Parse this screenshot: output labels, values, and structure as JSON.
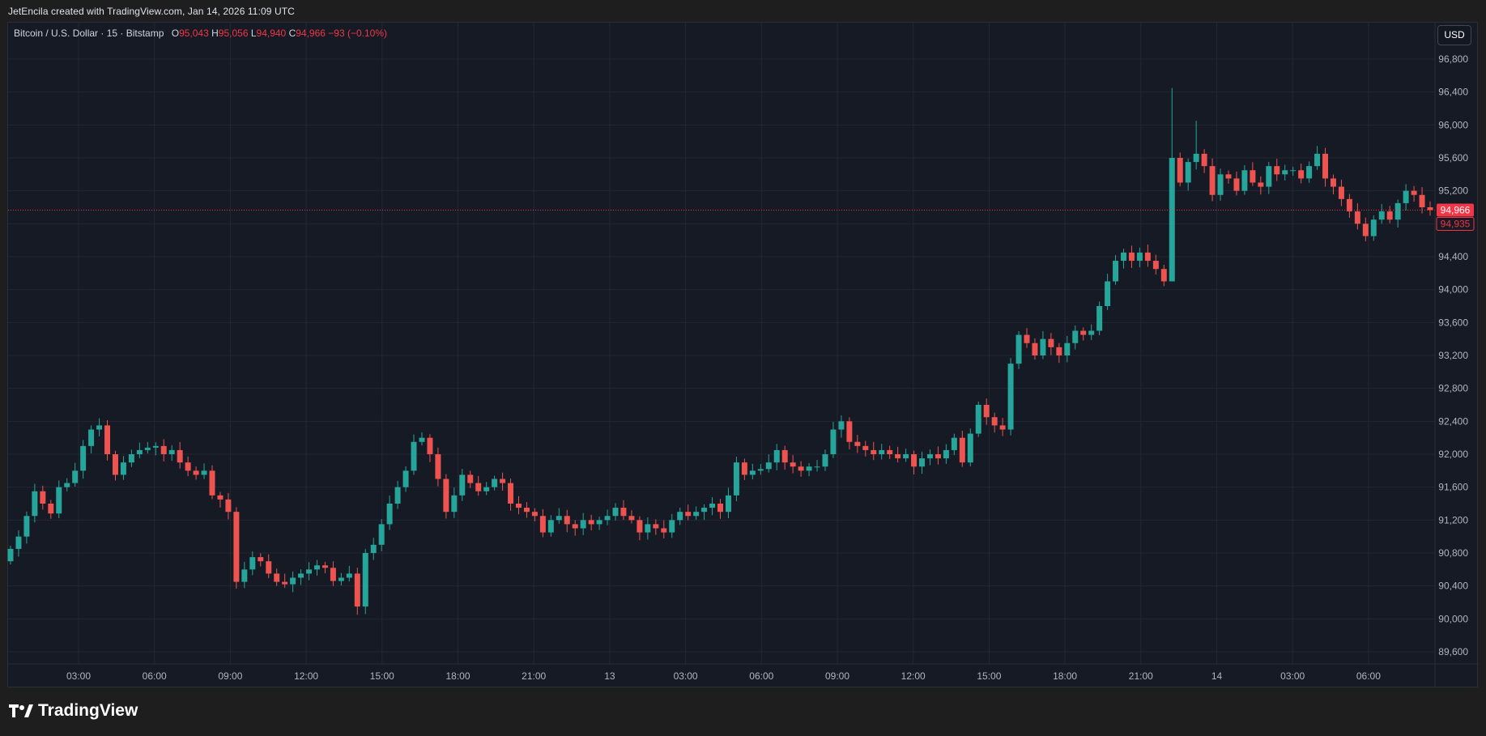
{
  "header": {
    "attribution": "JetEncila created with TradingView.com, Jan 14, 2026 11:09 UTC"
  },
  "legend": {
    "symbol": "Bitcoin / U.S. Dollar · 15 · Bitstamp",
    "open_label": "O",
    "open": "95,043",
    "high_label": "H",
    "high": "95,056",
    "low_label": "L",
    "low": "94,940",
    "close_label": "C",
    "close": "94,966",
    "change": "−93 (−0.10%)"
  },
  "currency_button": "USD",
  "footer": {
    "brand": "TradingView"
  },
  "colors": {
    "background": "#161a25",
    "grid": "#232734",
    "up": "#26a69a",
    "down": "#ef5350",
    "last_price": "#f23645",
    "axis_text": "#b2b5be"
  },
  "chart_data": {
    "type": "candlestick",
    "interval": "15",
    "currency": "USD",
    "ylim": [
      89400,
      97000
    ],
    "y_ticks": [
      89600,
      90000,
      90400,
      90800,
      91200,
      91600,
      92000,
      92400,
      92800,
      93200,
      93600,
      94000,
      94400,
      94800,
      95200,
      95600,
      96000,
      96400,
      96800
    ],
    "y_tick_labels": [
      "89,600",
      "90,000",
      "90,400",
      "90,800",
      "91,200",
      "91,600",
      "92,000",
      "92,400",
      "92,800",
      "93,200",
      "93,600",
      "94,000",
      "94,400",
      "94,800",
      "95,200",
      "95,600",
      "96,000",
      "96,400",
      "96,800"
    ],
    "x_tick_labels": [
      "03:00",
      "06:00",
      "09:00",
      "12:00",
      "15:00",
      "18:00",
      "21:00",
      "13",
      "03:00",
      "06:00",
      "09:00",
      "12:00",
      "15:00",
      "18:00",
      "21:00",
      "14",
      "03:00",
      "06:00"
    ],
    "last_price": 94966,
    "last_price_label": "94,966",
    "secondary_price": 94935,
    "secondary_price_label": "94,935",
    "grid": true,
    "closes": [
      90850,
      91000,
      91250,
      91550,
      91400,
      91280,
      91600,
      91650,
      91800,
      92100,
      92300,
      92350,
      92000,
      91750,
      91900,
      92000,
      92050,
      92080,
      92100,
      92000,
      92050,
      91900,
      91800,
      91750,
      91800,
      91500,
      91450,
      91300,
      90450,
      90600,
      90750,
      90700,
      90550,
      90450,
      90420,
      90500,
      90550,
      90600,
      90650,
      90620,
      90460,
      90500,
      90550,
      90150,
      90800,
      90900,
      91150,
      91400,
      91600,
      91800,
      92150,
      92200,
      92000,
      91700,
      91300,
      91500,
      91750,
      91650,
      91550,
      91600,
      91700,
      91650,
      91400,
      91350,
      91300,
      91250,
      91050,
      91200,
      91250,
      91150,
      91100,
      91200,
      91150,
      91200,
      91250,
      91350,
      91250,
      91200,
      91050,
      91150,
      91100,
      91050,
      91200,
      91300,
      91250,
      91300,
      91350,
      91400,
      91300,
      91500,
      91900,
      91750,
      91800,
      91820,
      91900,
      92050,
      91900,
      91850,
      91800,
      91850,
      91850,
      92000,
      92300,
      92400,
      92150,
      92100,
      92050,
      92000,
      92050,
      92000,
      91950,
      92000,
      91850,
      91950,
      92000,
      91950,
      92050,
      92200,
      91900,
      92250,
      92600,
      92450,
      92350,
      92300,
      93100,
      93450,
      93350,
      93200,
      93400,
      93300,
      93200,
      93350,
      93500,
      93450,
      93500,
      93800,
      94100,
      94350,
      94450,
      94350,
      94450,
      94350,
      94250,
      94100,
      95600,
      95300,
      95550,
      95650,
      95500,
      95150,
      95400,
      95350,
      95200,
      95450,
      95300,
      95250,
      95500,
      95400,
      95450,
      95450,
      95350,
      95500,
      95650,
      95350,
      95250,
      95100,
      94950,
      94800,
      94650,
      94850,
      94950,
      94850,
      95050,
      95200,
      95150,
      95000,
      94966
    ],
    "opens_follow_prior_close": true,
    "notable_highs": [
      {
        "index": 144,
        "high": 96450
      },
      {
        "index": 147,
        "high": 96050
      }
    ],
    "notable_lows": [
      {
        "index": 43,
        "low": 90050
      },
      {
        "index": 144,
        "low": 94100
      }
    ]
  }
}
